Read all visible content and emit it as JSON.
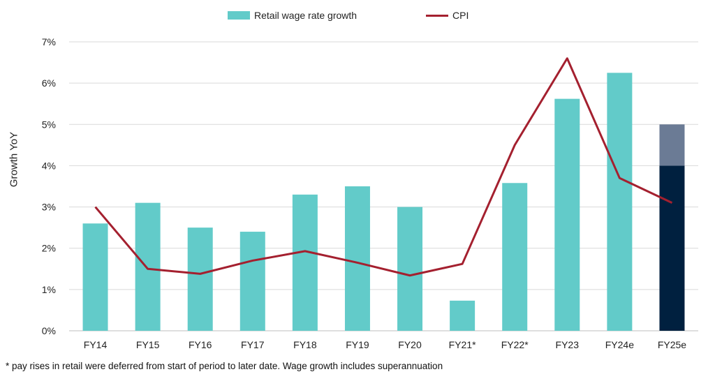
{
  "chart_data": {
    "type": "bar",
    "categories": [
      "FY14",
      "FY15",
      "FY16",
      "FY17",
      "FY18",
      "FY19",
      "FY20",
      "FY21*",
      "FY22*",
      "FY23",
      "FY24e",
      "FY25e"
    ],
    "series": [
      {
        "name": "Retail wage rate growth",
        "kind": "bar",
        "values": [
          2.6,
          3.1,
          2.5,
          2.4,
          3.3,
          3.5,
          3.0,
          0.73,
          3.58,
          5.62,
          6.25,
          4.0
        ],
        "color": "#62cbc9",
        "override_colors": {
          "FY25e": "#00203f"
        }
      },
      {
        "kind": "bar-stack-top",
        "values": [
          null,
          null,
          null,
          null,
          null,
          null,
          null,
          null,
          null,
          null,
          null,
          1.0
        ],
        "color": "#6b7b95"
      },
      {
        "name": "CPI",
        "kind": "line",
        "values": [
          3.0,
          1.5,
          1.38,
          1.7,
          1.93,
          1.65,
          1.34,
          1.62,
          4.5,
          6.6,
          3.7,
          3.1
        ],
        "color": "#a4202f"
      }
    ],
    "ylabel": "Growth YoY",
    "xlabel": "",
    "ylim": [
      0,
      7
    ],
    "yticks": [
      "0%",
      "1%",
      "2%",
      "3%",
      "4%",
      "5%",
      "6%",
      "7%"
    ],
    "grid": true,
    "legend_position": "top-center"
  },
  "footnote": "* pay rises in retail were deferred from start of period to later date. Wage growth includes superannuation"
}
